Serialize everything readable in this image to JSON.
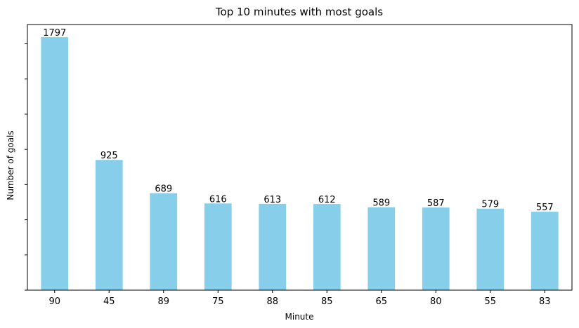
{
  "chart_data": {
    "type": "bar",
    "title": "Top 10 minutes with most goals",
    "xlabel": "Minute",
    "ylabel": "Number of goals",
    "categories": [
      "90",
      "45",
      "89",
      "75",
      "88",
      "85",
      "65",
      "80",
      "55",
      "83"
    ],
    "values": [
      1797,
      925,
      689,
      616,
      613,
      612,
      589,
      587,
      579,
      557
    ],
    "ylim": [
      0,
      1887
    ],
    "y_tick_values": [
      0,
      250,
      500,
      750,
      1000,
      1250,
      1500,
      1750
    ],
    "y_tick_labels_shown": false,
    "grid": false,
    "legend": "none",
    "bar_color": "#87CEEB"
  }
}
